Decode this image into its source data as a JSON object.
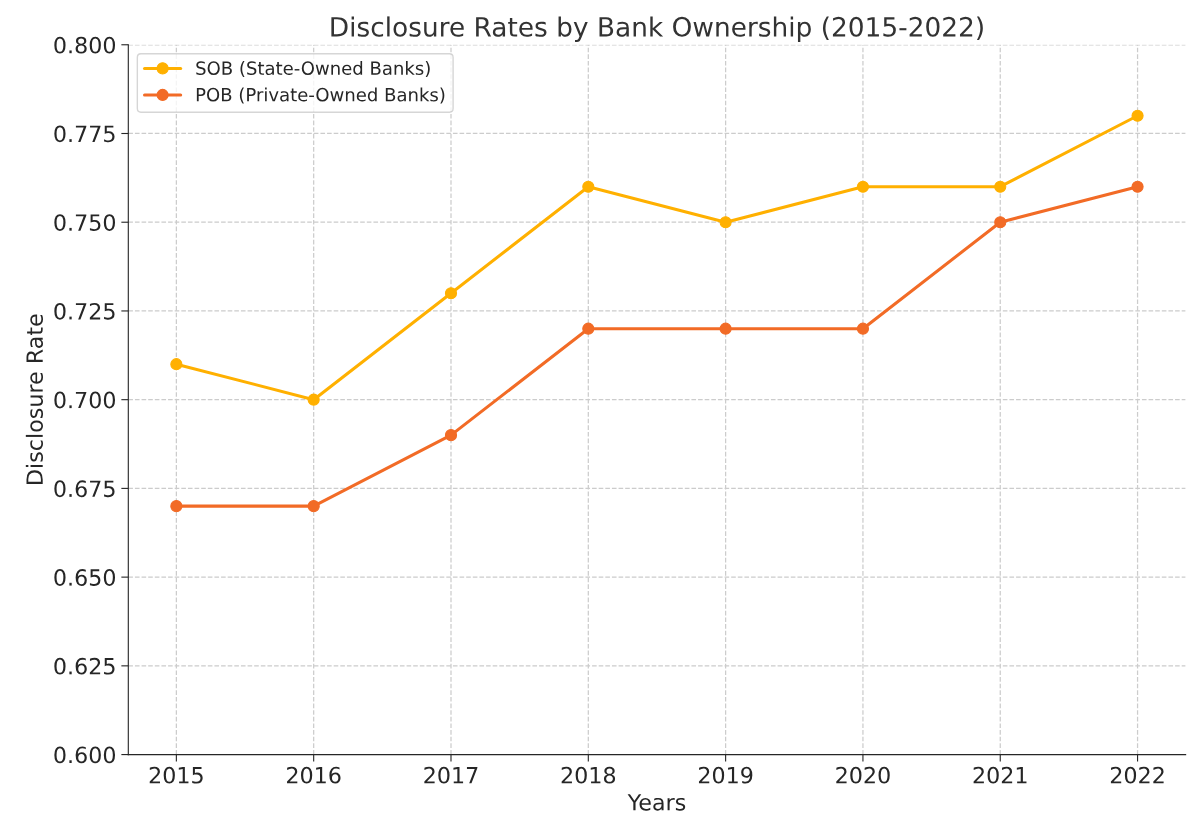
{
  "chart_data": {
    "type": "line",
    "title": "Disclosure Rates by Bank Ownership (2015-2022)",
    "xlabel": "Years",
    "ylabel": "Disclosure Rate",
    "x": [
      2015,
      2016,
      2017,
      2018,
      2019,
      2020,
      2021,
      2022
    ],
    "series": [
      {
        "name": "SOB (State-Owned Banks)",
        "color": "#ffb000",
        "values": [
          0.71,
          0.7,
          0.73,
          0.76,
          0.75,
          0.76,
          0.76,
          0.78
        ]
      },
      {
        "name": "POB (Private-Owned Banks)",
        "color": "#f26b26",
        "values": [
          0.67,
          0.67,
          0.69,
          0.72,
          0.72,
          0.72,
          0.75,
          0.76
        ]
      }
    ],
    "xlim": [
      2014.65,
      2022.35
    ],
    "xticks": [
      2015,
      2016,
      2017,
      2018,
      2019,
      2020,
      2021,
      2022
    ],
    "ylim": [
      0.6,
      0.8
    ],
    "yticks": [
      {
        "value": 0.6,
        "label": "0.600"
      },
      {
        "value": 0.625,
        "label": "0.625"
      },
      {
        "value": 0.65,
        "label": "0.650"
      },
      {
        "value": 0.675,
        "label": "0.675"
      },
      {
        "value": 0.7,
        "label": "0.700"
      },
      {
        "value": 0.725,
        "label": "0.725"
      },
      {
        "value": 0.75,
        "label": "0.750"
      },
      {
        "value": 0.775,
        "label": "0.775"
      },
      {
        "value": 0.8,
        "label": "0.800"
      }
    ],
    "grid": true,
    "legend": "top left",
    "marker": "circle",
    "line_style": "solid"
  }
}
